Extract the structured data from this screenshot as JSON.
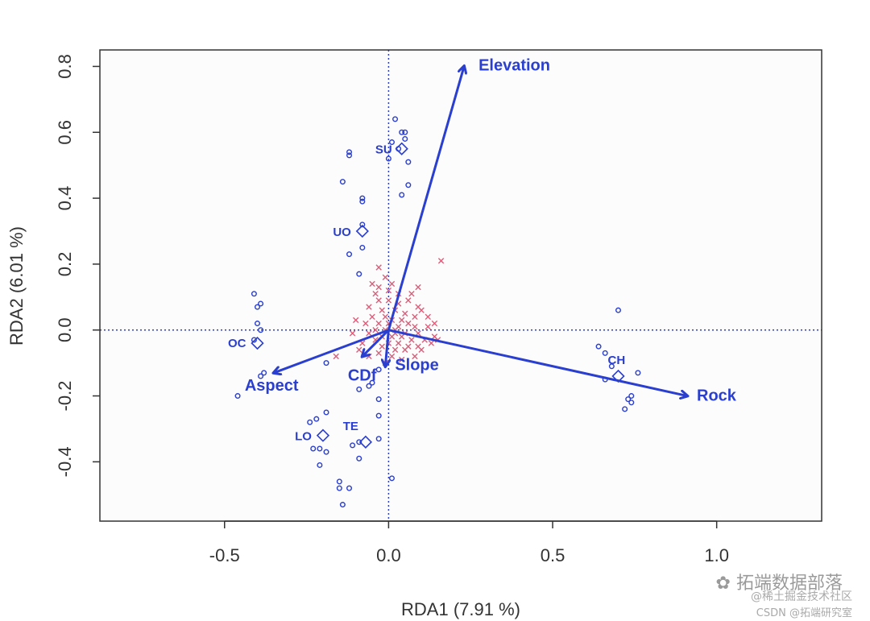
{
  "chart_data": {
    "type": "scatter",
    "title": "",
    "xlabel": "RDA1 (7.91 %)",
    "ylabel": "RDA2 (6.01 %)",
    "xlim": [
      -0.88,
      1.32
    ],
    "ylim": [
      -0.58,
      0.85
    ],
    "xticks": [
      -0.5,
      0.0,
      0.5,
      1.0
    ],
    "xtick_labels": [
      "-0.5",
      "0.0",
      "0.5",
      "1.0"
    ],
    "yticks": [
      -0.4,
      -0.2,
      0.0,
      0.2,
      0.4,
      0.6,
      0.8
    ],
    "ytick_labels": [
      "-0.4",
      "-0.2",
      "0.0",
      "0.2",
      "0.4",
      "0.6",
      "0.8"
    ],
    "reference_lines": {
      "x": 0.0,
      "y": 0.0
    },
    "arrows": [
      {
        "name": "Elevation",
        "x": 0.23,
        "y": 0.8
      },
      {
        "name": "Rock",
        "x": 0.91,
        "y": -0.2
      },
      {
        "name": "Aspect",
        "x": -0.35,
        "y": -0.13
      },
      {
        "name": "CDf",
        "x": -0.08,
        "y": -0.08
      },
      {
        "name": "Slope",
        "x": -0.01,
        "y": -0.11
      }
    ],
    "group_centroids": [
      {
        "name": "SU",
        "x": 0.04,
        "y": 0.55
      },
      {
        "name": "UO",
        "x": -0.08,
        "y": 0.3
      },
      {
        "name": "OC",
        "x": -0.4,
        "y": -0.04
      },
      {
        "name": "CH",
        "x": 0.7,
        "y": -0.14
      },
      {
        "name": "LO",
        "x": -0.2,
        "y": -0.32
      },
      {
        "name": "TE",
        "x": -0.07,
        "y": -0.34
      }
    ],
    "sites": [
      [
        0.02,
        0.64
      ],
      [
        0.04,
        0.6
      ],
      [
        0.05,
        0.6
      ],
      [
        0.05,
        0.58
      ],
      [
        0.01,
        0.57
      ],
      [
        0.03,
        0.55
      ],
      [
        0.0,
        0.52
      ],
      [
        0.06,
        0.51
      ],
      [
        -0.12,
        0.54
      ],
      [
        -0.12,
        0.53
      ],
      [
        0.06,
        0.44
      ],
      [
        0.04,
        0.41
      ],
      [
        -0.14,
        0.45
      ],
      [
        -0.08,
        0.4
      ],
      [
        -0.08,
        0.39
      ],
      [
        -0.08,
        0.32
      ],
      [
        -0.08,
        0.25
      ],
      [
        -0.12,
        0.23
      ],
      [
        -0.09,
        0.17
      ],
      [
        -0.41,
        0.11
      ],
      [
        -0.39,
        0.08
      ],
      [
        -0.4,
        0.07
      ],
      [
        -0.4,
        0.02
      ],
      [
        -0.39,
        0.0
      ],
      [
        -0.41,
        -0.03
      ],
      [
        -0.38,
        -0.13
      ],
      [
        -0.39,
        -0.14
      ],
      [
        -0.46,
        -0.2
      ],
      [
        0.7,
        0.06
      ],
      [
        0.64,
        -0.05
      ],
      [
        0.66,
        -0.07
      ],
      [
        0.68,
        -0.11
      ],
      [
        0.76,
        -0.13
      ],
      [
        0.66,
        -0.15
      ],
      [
        0.74,
        -0.2
      ],
      [
        0.73,
        -0.21
      ],
      [
        0.74,
        -0.22
      ],
      [
        0.72,
        -0.24
      ],
      [
        -0.19,
        -0.25
      ],
      [
        -0.22,
        -0.27
      ],
      [
        -0.24,
        -0.28
      ],
      [
        -0.23,
        -0.36
      ],
      [
        -0.21,
        -0.36
      ],
      [
        -0.19,
        -0.37
      ],
      [
        -0.21,
        -0.41
      ],
      [
        -0.15,
        -0.46
      ],
      [
        -0.15,
        -0.48
      ],
      [
        -0.12,
        -0.48
      ],
      [
        -0.14,
        -0.53
      ],
      [
        -0.03,
        -0.12
      ],
      [
        -0.05,
        -0.16
      ],
      [
        -0.06,
        -0.17
      ],
      [
        -0.09,
        -0.18
      ],
      [
        -0.19,
        -0.1
      ],
      [
        -0.03,
        -0.21
      ],
      [
        -0.03,
        -0.26
      ],
      [
        -0.03,
        -0.33
      ],
      [
        -0.11,
        -0.35
      ],
      [
        -0.09,
        -0.34
      ],
      [
        -0.09,
        -0.39
      ],
      [
        0.01,
        -0.45
      ]
    ],
    "species": [
      [
        0.16,
        0.21
      ],
      [
        -0.03,
        0.19
      ],
      [
        -0.01,
        0.16
      ],
      [
        0.01,
        0.14
      ],
      [
        -0.03,
        0.13
      ],
      [
        0.0,
        0.12
      ],
      [
        0.09,
        0.13
      ],
      [
        -0.04,
        0.11
      ],
      [
        0.03,
        0.11
      ],
      [
        0.07,
        0.11
      ],
      [
        -0.03,
        0.09
      ],
      [
        0.0,
        0.09
      ],
      [
        0.03,
        0.08
      ],
      [
        0.09,
        0.07
      ],
      [
        0.1,
        0.06
      ],
      [
        -0.06,
        0.07
      ],
      [
        -0.02,
        0.06
      ],
      [
        0.02,
        0.06
      ],
      [
        0.05,
        0.05
      ],
      [
        0.08,
        0.04
      ],
      [
        -0.05,
        0.04
      ],
      [
        -0.01,
        0.04
      ],
      [
        0.01,
        0.03
      ],
      [
        0.04,
        0.03
      ],
      [
        0.06,
        0.02
      ],
      [
        -0.07,
        0.02
      ],
      [
        -0.03,
        0.02
      ],
      [
        0.0,
        0.02
      ],
      [
        0.03,
        0.01
      ],
      [
        0.08,
        0.01
      ],
      [
        0.12,
        0.01
      ],
      [
        -0.04,
        0.0
      ],
      [
        -0.01,
        0.0
      ],
      [
        0.02,
        0.0
      ],
      [
        0.05,
        -0.01
      ],
      [
        0.09,
        -0.01
      ],
      [
        -0.06,
        -0.01
      ],
      [
        -0.02,
        -0.02
      ],
      [
        0.01,
        -0.02
      ],
      [
        0.04,
        -0.02
      ],
      [
        0.07,
        -0.03
      ],
      [
        0.11,
        -0.03
      ],
      [
        -0.04,
        -0.03
      ],
      [
        0.0,
        -0.04
      ],
      [
        0.03,
        -0.04
      ],
      [
        0.06,
        -0.05
      ],
      [
        0.09,
        -0.05
      ],
      [
        -0.02,
        -0.05
      ],
      [
        0.02,
        -0.06
      ],
      [
        0.05,
        -0.06
      ],
      [
        0.14,
        -0.02
      ],
      [
        0.13,
        -0.04
      ],
      [
        -0.08,
        -0.04
      ],
      [
        -0.09,
        -0.06
      ],
      [
        -0.06,
        -0.08
      ],
      [
        -0.03,
        -0.07
      ],
      [
        0.01,
        -0.08
      ],
      [
        0.04,
        -0.09
      ],
      [
        0.08,
        -0.08
      ],
      [
        -0.16,
        -0.08
      ],
      [
        -0.11,
        -0.01
      ],
      [
        -0.1,
        0.03
      ],
      [
        0.12,
        0.04
      ],
      [
        0.14,
        0.02
      ],
      [
        0.1,
        -0.06
      ],
      [
        0.15,
        -0.03
      ],
      [
        -0.01,
        -0.1
      ],
      [
        0.02,
        -0.01
      ],
      [
        0.06,
        0.09
      ],
      [
        -0.05,
        0.14
      ]
    ]
  },
  "watermark": {
    "line1": "拓端数据部落",
    "line2": "@稀土掘金技术社区",
    "line3": "CSDN @拓端研究室"
  },
  "colors": {
    "arrow": "#2a3fcf",
    "site": "#2a3fcf",
    "species": "#d9607a",
    "refline": "#2a3fcf",
    "frame": "#333333",
    "panel_bg": "#fcfcfd"
  }
}
